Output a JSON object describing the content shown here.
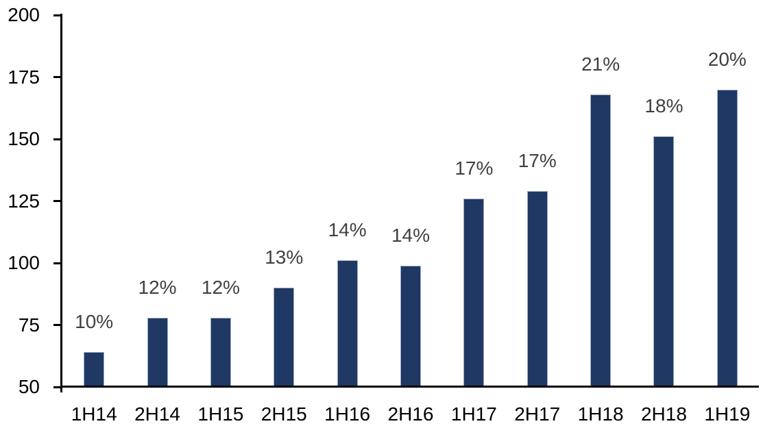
{
  "chart_data": {
    "type": "bar",
    "title": "",
    "xlabel": "",
    "ylabel": "",
    "categories": [
      "1H14",
      "2H14",
      "1H15",
      "2H15",
      "1H16",
      "2H16",
      "1H17",
      "2H17",
      "1H18",
      "2H18",
      "1H19"
    ],
    "values": [
      64,
      78,
      78,
      90,
      101,
      99,
      126,
      129,
      168,
      151,
      170
    ],
    "point_labels": [
      "10%",
      "12%",
      "12%",
      "13%",
      "14%",
      "14%",
      "17%",
      "17%",
      "21%",
      "18%",
      "20%"
    ],
    "ylim": [
      50,
      200
    ],
    "yticks": [
      50,
      75,
      100,
      125,
      150,
      175,
      200
    ],
    "grid": "off",
    "legend": "none",
    "colors": {
      "bar_fill": "#1F3864",
      "bar_border": "#9EABC2",
      "data_label": "#404040",
      "axis": "#000000",
      "background": "#FFFFFF"
    }
  }
}
